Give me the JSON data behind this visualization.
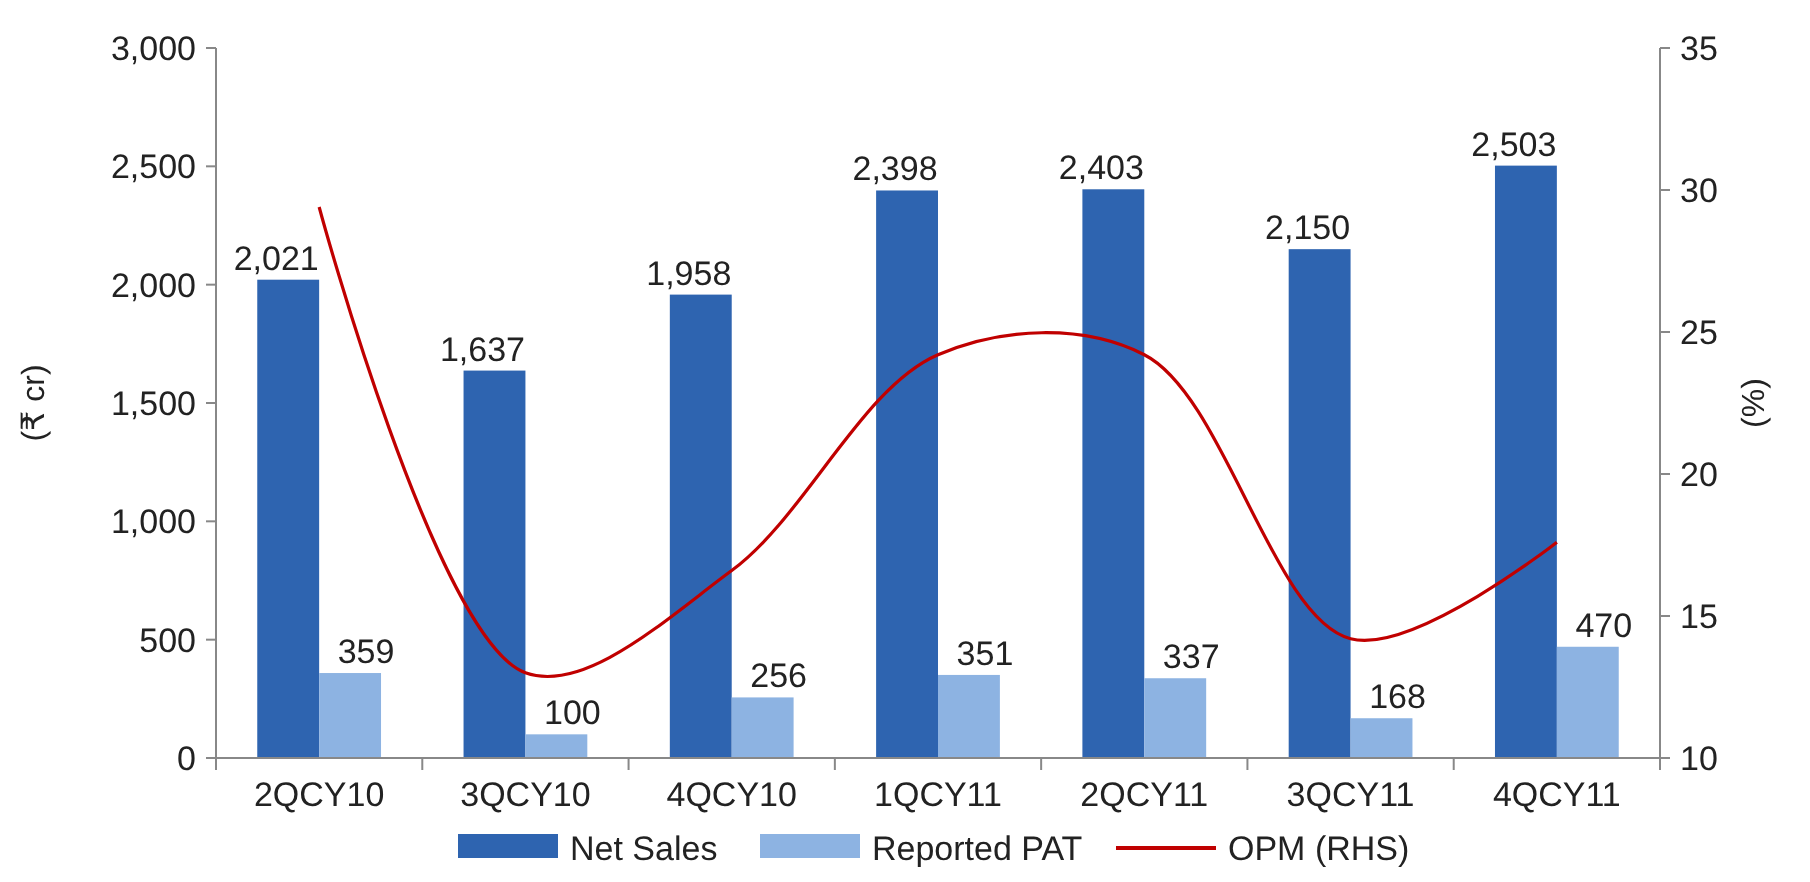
{
  "chart_data": {
    "type": "bar",
    "categories": [
      "2QCY10",
      "3QCY10",
      "4QCY10",
      "1QCY11",
      "2QCY11",
      "3QCY11",
      "4QCY11"
    ],
    "series": [
      {
        "name": "Net Sales",
        "color": "#2e64b0",
        "values": [
          2021,
          1637,
          1958,
          2398,
          2403,
          2150,
          2503
        ],
        "value_labels": [
          "2,021",
          "1,637",
          "1,958",
          "2,398",
          "2,403",
          "2,150",
          "2,503"
        ]
      },
      {
        "name": "Reported PAT",
        "color": "#8db3e2",
        "values": [
          359,
          100,
          256,
          351,
          337,
          168,
          470
        ],
        "value_labels": [
          "359",
          "100",
          "256",
          "351",
          "337",
          "168",
          "470"
        ]
      },
      {
        "name": "OPM (RHS)",
        "type": "line",
        "axis": "y2",
        "color": "#c00000",
        "values": [
          29.4,
          13.0,
          16.6,
          24.2,
          24.2,
          14.2,
          17.6
        ]
      }
    ],
    "ylabel": "(₹ cr)",
    "y2label": "(%)",
    "ylim": [
      0,
      3000
    ],
    "yticks": [
      {
        "value": 0,
        "label": "0"
      },
      {
        "value": 500,
        "label": "500"
      },
      {
        "value": 1000,
        "label": "1,000"
      },
      {
        "value": 1500,
        "label": "1,500"
      },
      {
        "value": 2000,
        "label": "2,000"
      },
      {
        "value": 2500,
        "label": "2,500"
      },
      {
        "value": 3000,
        "label": "3,000"
      }
    ],
    "y2lim": [
      10,
      35
    ],
    "y2ticks": [
      10,
      15,
      20,
      25,
      30,
      35
    ],
    "legend": "bottom",
    "grid": false,
    "marker": "none"
  }
}
